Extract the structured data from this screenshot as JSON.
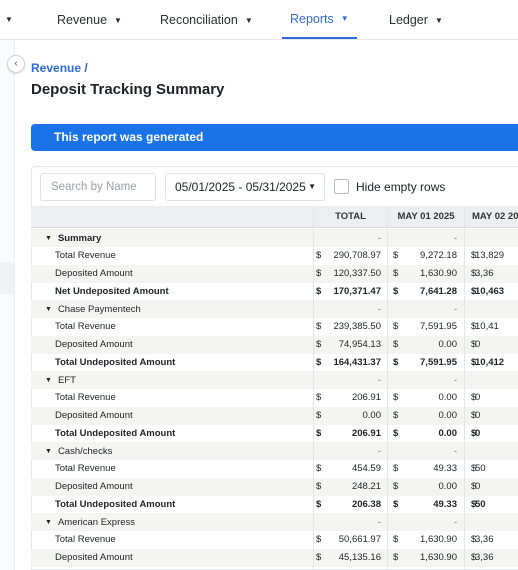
{
  "nav": {
    "items": [
      {
        "label": "Revenue"
      },
      {
        "label": "Reconciliation"
      },
      {
        "label": "Reports"
      },
      {
        "label": "Ledger"
      }
    ],
    "active": "Reports"
  },
  "breadcrumb": "Revenue /",
  "page_title": "Deposit Tracking Summary",
  "banner": "This report was generated",
  "filters": {
    "search_placeholder": "Search by Name",
    "date_range": "05/01/2025 - 05/31/2025",
    "hide_empty_label": "Hide empty rows",
    "hide_empty_checked": false
  },
  "table": {
    "headers": [
      "TOTAL",
      "MAY 01 2025",
      "MAY 02 20"
    ],
    "currency": "$",
    "dash": "-",
    "rows": [
      {
        "type": "group",
        "name": "Summary",
        "bold": true
      },
      {
        "type": "data",
        "name": "Total Revenue",
        "total": "290,708.97",
        "may01": "9,272.18",
        "may02": "13,829"
      },
      {
        "type": "data",
        "name": "Deposited Amount",
        "total": "120,337.50",
        "may01": "1,630.90",
        "may02": "3,36"
      },
      {
        "type": "data",
        "name": "Net Undeposited Amount",
        "total": "170,371.47",
        "may01": "7,641.28",
        "may02": "10,463",
        "bold": true
      },
      {
        "type": "group",
        "name": "Chase Paymentech"
      },
      {
        "type": "data",
        "name": "Total Revenue",
        "total": "239,385.50",
        "may01": "7,591.95",
        "may02": "10,41"
      },
      {
        "type": "data",
        "name": "Deposited Amount",
        "total": "74,954.13",
        "may01": "0.00",
        "may02": "0"
      },
      {
        "type": "data",
        "name": "Total Undeposited Amount",
        "total": "164,431.37",
        "may01": "7,591.95",
        "may02": "10,412",
        "bold": true
      },
      {
        "type": "group",
        "name": "EFT"
      },
      {
        "type": "data",
        "name": "Total Revenue",
        "total": "206.91",
        "may01": "0.00",
        "may02": "0"
      },
      {
        "type": "data",
        "name": "Deposited Amount",
        "total": "0.00",
        "may01": "0.00",
        "may02": "0"
      },
      {
        "type": "data",
        "name": "Total Undeposited Amount",
        "total": "206.91",
        "may01": "0.00",
        "may02": "0",
        "bold": true
      },
      {
        "type": "group",
        "name": "Cash/checks"
      },
      {
        "type": "data",
        "name": "Total Revenue",
        "total": "454.59",
        "may01": "49.33",
        "may02": "50"
      },
      {
        "type": "data",
        "name": "Deposited Amount",
        "total": "248.21",
        "may01": "0.00",
        "may02": "0"
      },
      {
        "type": "data",
        "name": "Total Undeposited Amount",
        "total": "206.38",
        "may01": "49.33",
        "may02": "50",
        "bold": true
      },
      {
        "type": "group",
        "name": "American Express"
      },
      {
        "type": "data",
        "name": "Total Revenue",
        "total": "50,661.97",
        "may01": "1,630.90",
        "may02": "3,36"
      },
      {
        "type": "data",
        "name": "Deposited Amount",
        "total": "45,135.16",
        "may01": "1,630.90",
        "may02": "3,36"
      }
    ]
  },
  "colors": {
    "accent": "#2f6bd8",
    "banner": "#1a73e8",
    "row_alt": "#f4f5f0"
  }
}
